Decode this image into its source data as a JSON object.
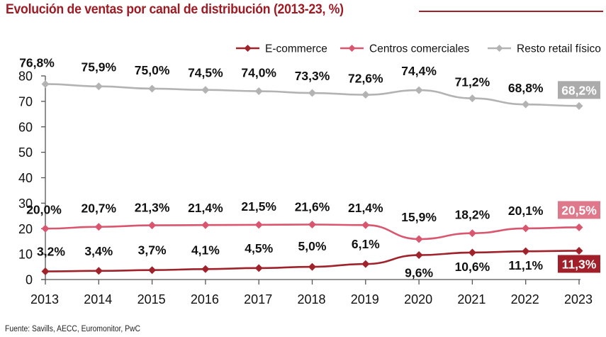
{
  "title": "Evolución de ventas por canal de distribución (2013-23, %)",
  "source": "Fuente: Savills, AECC, Euromonitor, PwC",
  "colors": {
    "title": "#9e1b24",
    "ecommerce": "#a0222b",
    "centros": "#d9566e",
    "resto": "#b3b3b3",
    "centros_label_bg": "#e0788b",
    "resto_label_bg": "#ababab",
    "ecommerce_label_bg": "#a11f28"
  },
  "chart_data": {
    "type": "line",
    "title": "Evolución de ventas por canal de distribución (2013-23, %)",
    "xlabel": "",
    "ylabel": "",
    "x": [
      "2013",
      "2014",
      "2015",
      "2016",
      "2017",
      "2018",
      "2019",
      "2020",
      "2021",
      "2022",
      "2023"
    ],
    "ylim": [
      0,
      80
    ],
    "yticks": [
      "0",
      "10",
      "20",
      "30",
      "40",
      "50",
      "60",
      "70",
      "80"
    ],
    "grid": false,
    "legend_position": "top-right",
    "series": [
      {
        "name": "E-commerce",
        "color_key": "ecommerce",
        "values": [
          3.2,
          3.4,
          3.7,
          4.1,
          4.5,
          5.0,
          6.1,
          9.6,
          10.6,
          11.1,
          11.3
        ],
        "labels": [
          "3,2%",
          "3,4%",
          "3,7%",
          "4,1%",
          "4,5%",
          "5,0%",
          "6,1%",
          "9,6%",
          "10,6%",
          "11,1%",
          "11,3%"
        ]
      },
      {
        "name": "Centros comerciales",
        "color_key": "centros",
        "values": [
          20.0,
          20.7,
          21.3,
          21.4,
          21.5,
          21.6,
          21.4,
          15.9,
          18.2,
          20.1,
          20.5
        ],
        "labels": [
          "20,0%",
          "20,7%",
          "21,3%",
          "21,4%",
          "21,5%",
          "21,6%",
          "21,4%",
          "15,9%",
          "18,2%",
          "20,1%",
          "20,5%"
        ]
      },
      {
        "name": "Resto retail físico",
        "color_key": "resto",
        "values": [
          76.8,
          75.9,
          75.0,
          74.5,
          74.0,
          73.3,
          72.6,
          74.4,
          71.2,
          68.8,
          68.2
        ],
        "labels": [
          "76,8%",
          "75,9%",
          "75,0%",
          "74,5%",
          "74,0%",
          "73,3%",
          "72,6%",
          "74,4%",
          "71,2%",
          "68,8%",
          "68,2%"
        ]
      }
    ]
  }
}
